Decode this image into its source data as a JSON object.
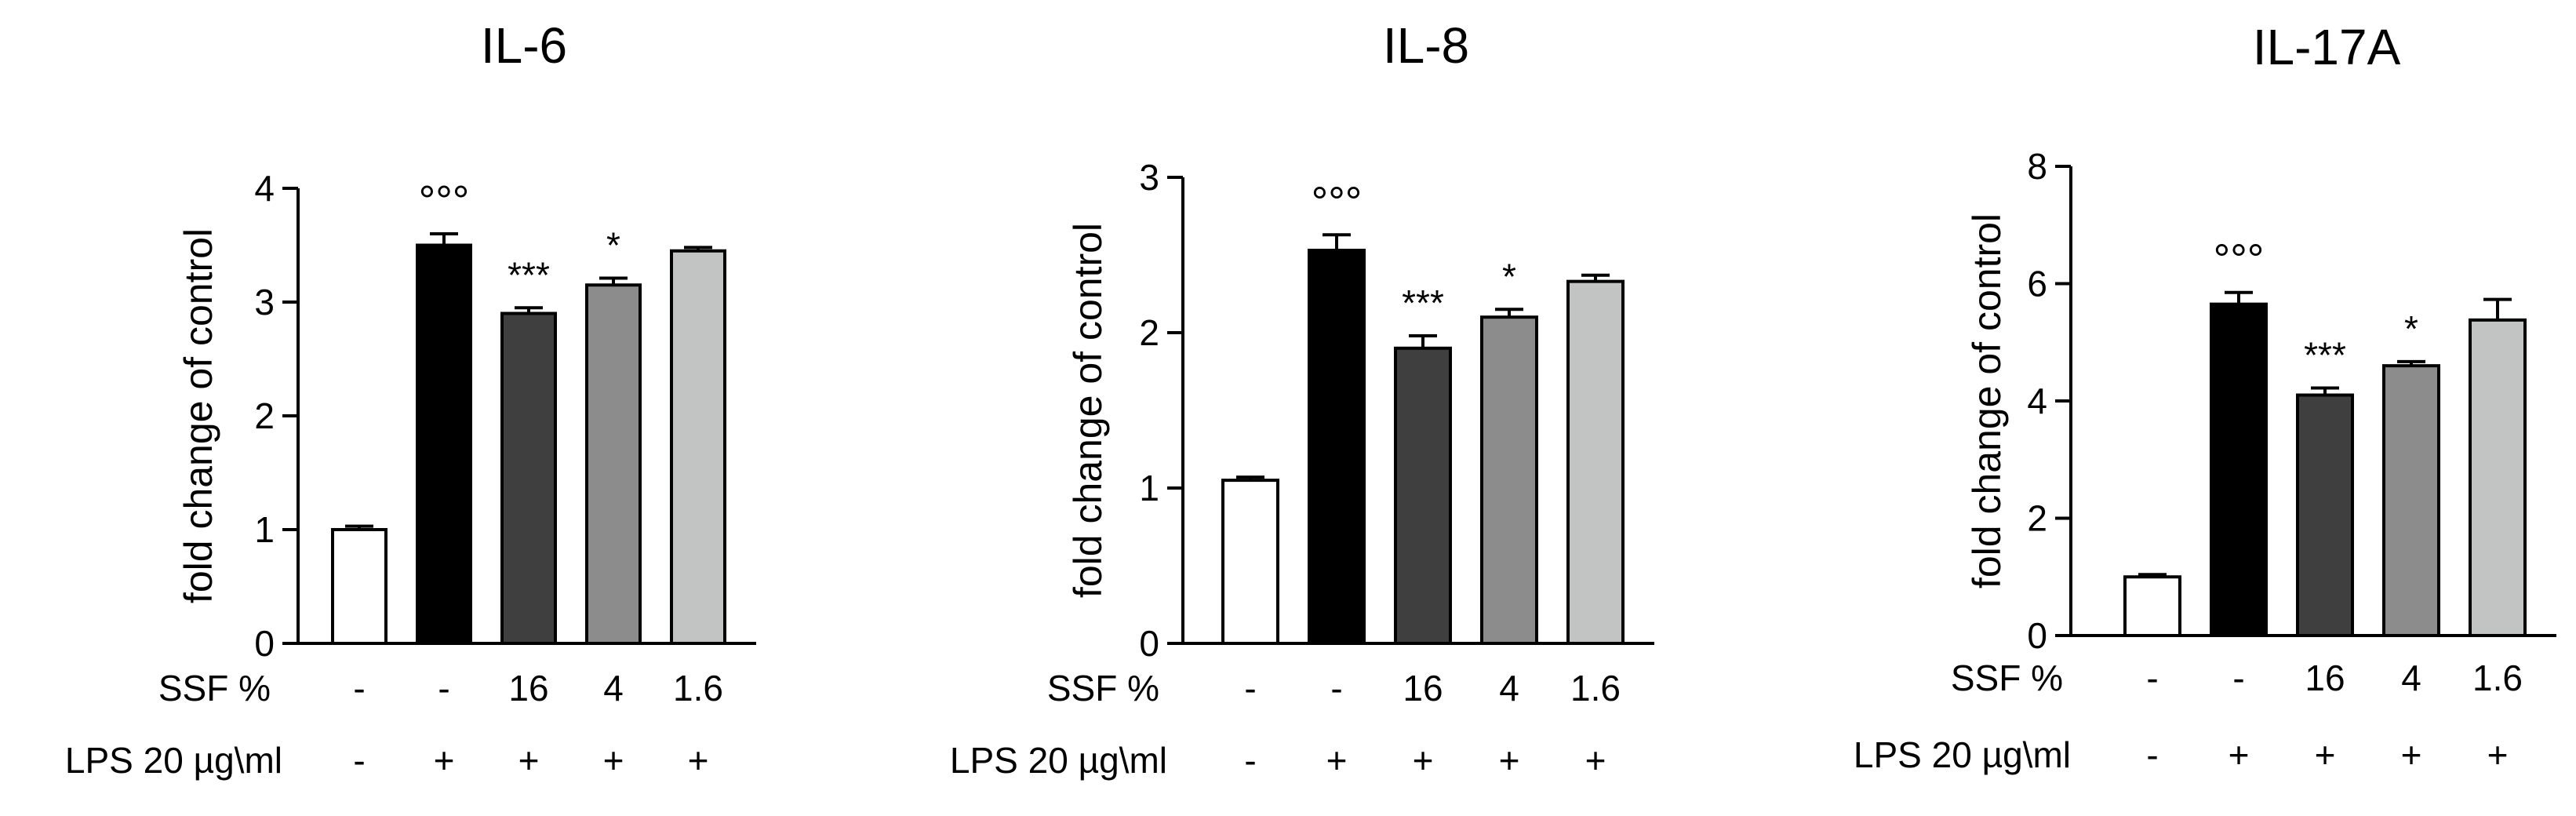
{
  "chart_data": [
    {
      "type": "bar",
      "title": "IL-6",
      "ylabel": "fold change of control",
      "ylim": [
        0,
        4
      ],
      "yticks": [
        0,
        1,
        2,
        3,
        4
      ],
      "values": [
        1.0,
        3.5,
        2.9,
        3.15,
        3.45
      ],
      "errors": [
        0.03,
        0.1,
        0.05,
        0.06,
        0.03
      ],
      "annotations": [
        "",
        "°°°",
        "***",
        "*",
        ""
      ],
      "bar_colors": [
        "#ffffff",
        "#000000",
        "#3f3f3f",
        "#8c8c8c",
        "#c2c3c3"
      ],
      "rows": [
        {
          "label": "SSF %",
          "values": [
            "-",
            "-",
            "16",
            "4",
            "1.6"
          ]
        },
        {
          "label": "LPS 20 µg\\ml",
          "values": [
            "-",
            "+",
            "+",
            "+",
            "+"
          ]
        }
      ]
    },
    {
      "type": "bar",
      "title": "IL-8",
      "ylabel": "fold change of control",
      "ylim": [
        0,
        3
      ],
      "yticks": [
        0,
        1,
        2,
        3
      ],
      "values": [
        1.05,
        2.53,
        1.9,
        2.1,
        2.33
      ],
      "errors": [
        0.02,
        0.1,
        0.08,
        0.05,
        0.04
      ],
      "annotations": [
        "",
        "°°°",
        "***",
        "*",
        ""
      ],
      "bar_colors": [
        "#ffffff",
        "#000000",
        "#3f3f3f",
        "#8c8c8c",
        "#c2c3c3"
      ],
      "rows": [
        {
          "label": "SSF %",
          "values": [
            "-",
            "-",
            "16",
            "4",
            "1.6"
          ]
        },
        {
          "label": "LPS 20 µg\\ml",
          "values": [
            "-",
            "+",
            "+",
            "+",
            "+"
          ]
        }
      ]
    },
    {
      "type": "bar",
      "title": "IL-17A",
      "ylabel": "fold change of control",
      "ylim": [
        0,
        8
      ],
      "yticks": [
        0,
        2,
        4,
        6,
        8
      ],
      "values": [
        1.0,
        5.65,
        4.1,
        4.6,
        5.38
      ],
      "errors": [
        0.04,
        0.2,
        0.12,
        0.07,
        0.35
      ],
      "annotations": [
        "",
        "°°°",
        "***",
        "*",
        ""
      ],
      "bar_colors": [
        "#ffffff",
        "#000000",
        "#3f3f3f",
        "#8c8c8c",
        "#c2c3c3"
      ],
      "rows": [
        {
          "label": "SSF %",
          "values": [
            "-",
            "-",
            "16",
            "4",
            "1.6"
          ]
        },
        {
          "label": "LPS 20 µg\\ml",
          "values": [
            "-",
            "+",
            "+",
            "+",
            "+"
          ]
        }
      ]
    }
  ]
}
